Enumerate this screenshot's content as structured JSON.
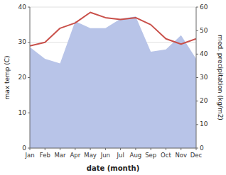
{
  "chart_data": {
    "type": "line",
    "categories": [
      "Jan",
      "Feb",
      "Mar",
      "Apr",
      "May",
      "Jun",
      "Jul",
      "Aug",
      "Sep",
      "Oct",
      "Nov",
      "Dec"
    ],
    "xlabel": "date (month)",
    "ylabel": "max temp (C)",
    "y2label": "med. precipitation (kg/m2)",
    "series": [
      {
        "type": "area",
        "axis": "y2",
        "color": "#b8c4e8",
        "values": [
          43,
          38,
          36,
          54,
          51,
          51,
          55,
          56,
          41,
          42,
          48,
          38
        ]
      },
      {
        "type": "line",
        "color": "#c9504a",
        "values": [
          29,
          30,
          34,
          35.5,
          38.5,
          37,
          36.5,
          37,
          35,
          31,
          29.5,
          31
        ]
      }
    ],
    "ylim": [
      0,
      40
    ],
    "yticks": [
      0,
      10,
      20,
      30,
      40
    ],
    "y2lim": [
      0,
      60
    ],
    "y2ticks": [
      0,
      10,
      20,
      30,
      40,
      50,
      60
    ],
    "grid": true
  }
}
